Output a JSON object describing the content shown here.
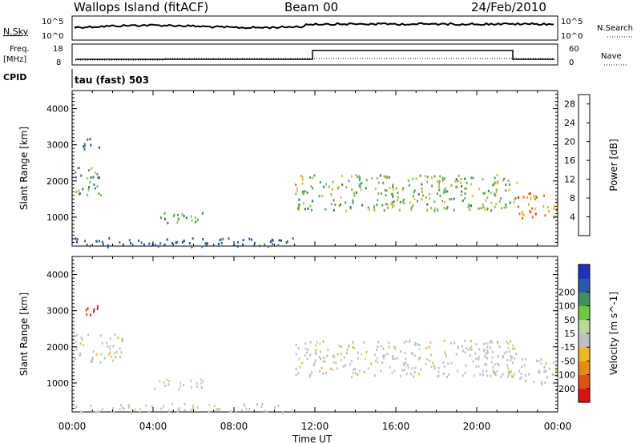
{
  "header": {
    "station": "Wallops Island (fitACF)",
    "beam": "Beam 00",
    "date": "24/Feb/2010"
  },
  "top_panels": {
    "nsky_label": "N.Sky",
    "nsearch_label": "N.Search",
    "nsky_ticks": [
      "10^5",
      "10^0"
    ],
    "nsky_right_ticks": [
      "10^5",
      "10^0"
    ],
    "freq_label_1": "Freq.",
    "freq_label_2": "[MHz]",
    "freq_ticks": [
      "18",
      "8"
    ],
    "nave_label": "Nave",
    "nave_ticks": [
      "60",
      "0"
    ],
    "cpid_label": "CPID",
    "cpid_value": "tau (fast) 503"
  },
  "x_axis": {
    "label": "Time UT",
    "ticks": [
      "00:00",
      "04:00",
      "08:00",
      "12:00",
      "16:00",
      "20:00",
      "00:00"
    ]
  },
  "colors": {
    "power": [
      "#2030d8",
      "#2850a8",
      "#307860",
      "#50a060",
      "#80c040",
      "#d8c020",
      "#f0a010",
      "#e86010",
      "#e02010"
    ],
    "velocity": [
      "#e01010",
      "#e05010",
      "#e88a10",
      "#f0b820",
      "#c0c0c0",
      "#b8d8a0",
      "#70c840",
      "#409060",
      "#2a5ab0",
      "#2030c0"
    ]
  },
  "chart_data": [
    {
      "type": "heatmap",
      "name": "power",
      "ylabel": "Slant Range [km]",
      "yticks": [
        1000,
        2000,
        3000,
        4000
      ],
      "ylim": [
        200,
        4500
      ],
      "xlim": [
        0,
        24
      ],
      "colorbar_label": "Power [dB]",
      "colorbar_ticks": [
        4,
        8,
        12,
        16,
        20,
        24,
        28
      ],
      "colorbar_range": [
        0,
        30
      ],
      "regions": [
        {
          "t0": 0.1,
          "t1": 1.5,
          "r0": 1600,
          "r1": 2400,
          "value": 12
        },
        {
          "t0": 0.5,
          "t1": 1.5,
          "r0": 2900,
          "r1": 3200,
          "value": 6
        },
        {
          "t0": 4.0,
          "t1": 6.5,
          "r0": 850,
          "r1": 1150,
          "value": 12
        },
        {
          "t0": 0.0,
          "t1": 11.0,
          "r0": 200,
          "r1": 450,
          "value": 5
        },
        {
          "t0": 11.0,
          "t1": 22.0,
          "r0": 1200,
          "r1": 2200,
          "value": 14
        },
        {
          "t0": 22.0,
          "t1": 24.0,
          "r0": 1000,
          "r1": 1700,
          "value": 22
        }
      ]
    },
    {
      "type": "heatmap",
      "name": "velocity",
      "ylabel": "Slant Range [km]",
      "yticks": [
        1000,
        2000,
        3000,
        4000
      ],
      "ylim": [
        200,
        4500
      ],
      "xlim": [
        0,
        24
      ],
      "colorbar_label": "Velocity [m s^-1]",
      "colorbar_ticks": [
        -200,
        -100,
        -50,
        -15,
        15,
        50,
        100,
        200
      ],
      "regions": [
        {
          "t0": 0.1,
          "t1": 2.5,
          "r0": 1600,
          "r1": 2400,
          "value": 0
        },
        {
          "t0": 0.5,
          "t1": 1.5,
          "r0": 2900,
          "r1": 3200,
          "value": -200
        },
        {
          "t0": 4.0,
          "t1": 6.5,
          "r0": 850,
          "r1": 1150,
          "value": 20
        },
        {
          "t0": 0.0,
          "t1": 11.0,
          "r0": 200,
          "r1": 450,
          "value": 30
        },
        {
          "t0": 11.0,
          "t1": 22.0,
          "r0": 1200,
          "r1": 2200,
          "value": 0
        },
        {
          "t0": 22.0,
          "t1": 24.0,
          "r0": 1000,
          "r1": 1700,
          "value": 0
        }
      ]
    }
  ]
}
